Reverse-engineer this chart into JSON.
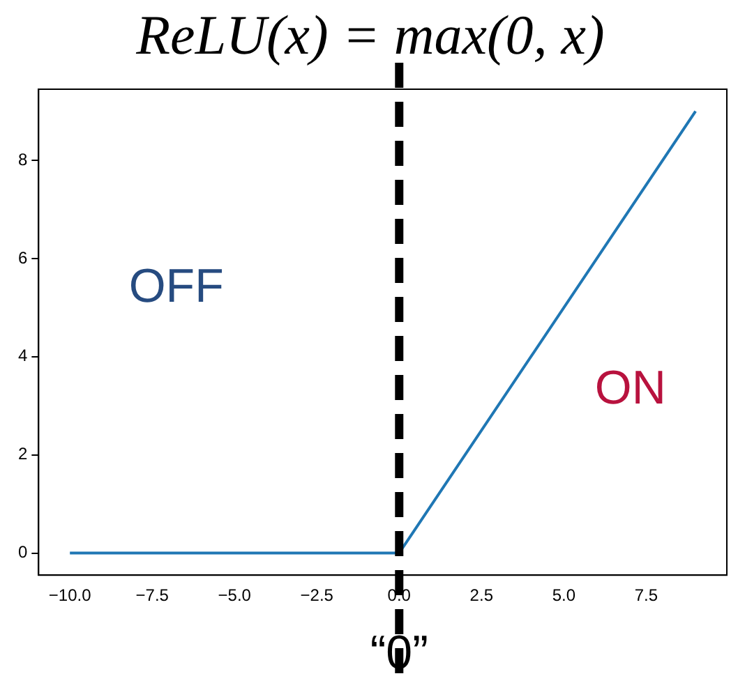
{
  "chart_data": {
    "type": "line",
    "title": "ReLU(x) = max(0, x)",
    "x": [
      -10,
      0,
      9
    ],
    "series": [
      {
        "color": "#1f77b4",
        "values": [
          0,
          0,
          9
        ]
      }
    ],
    "xlim": [
      -10.95,
      9.95
    ],
    "xticks": [
      {
        "value": -10,
        "label": "−10.0"
      },
      {
        "value": -7.5,
        "label": "−7.5"
      },
      {
        "value": -5,
        "label": "−5.0"
      },
      {
        "value": -2.5,
        "label": "−2.5"
      },
      {
        "value": 0,
        "label": "0.0"
      },
      {
        "value": 2.5,
        "label": "2.5"
      },
      {
        "value": 5,
        "label": "5.0"
      },
      {
        "value": 7.5,
        "label": "7.5"
      }
    ],
    "ylim": [
      -0.45,
      9.45
    ],
    "yticks": [
      0,
      2,
      4,
      6,
      8
    ],
    "grid": false,
    "legend": false,
    "marker": "none",
    "line_style": "solid",
    "ref_lines": [
      {
        "axis": "x",
        "value": 0,
        "label": "“0”",
        "color": "#000000",
        "line_style": "dashed"
      }
    ],
    "annotations": [
      "OFF",
      "ON"
    ]
  }
}
